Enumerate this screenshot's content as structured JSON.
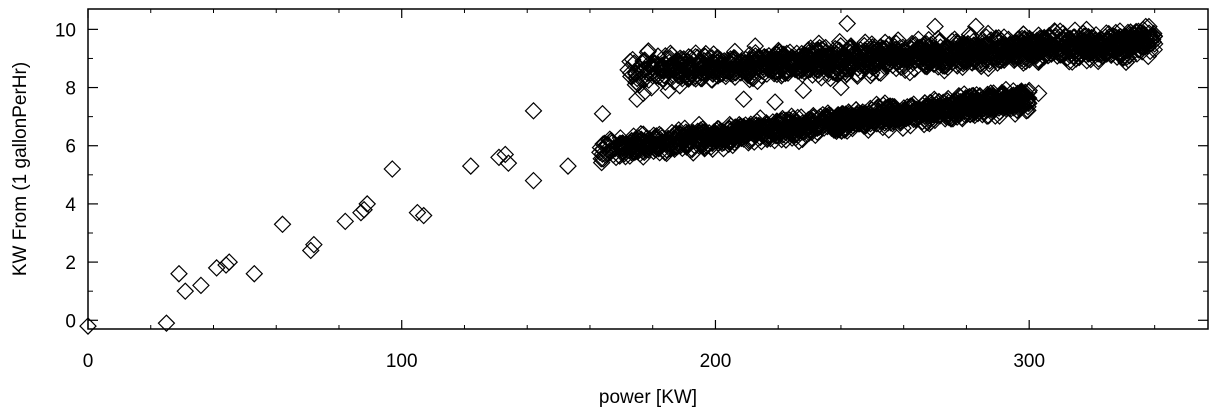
{
  "chart_data": {
    "type": "scatter",
    "title": "",
    "xlabel": "power [KW]",
    "ylabel": "KW From (1 gallonPerHr)",
    "xlim": [
      0,
      357
    ],
    "ylim": [
      -0.3,
      10.7
    ],
    "grid": false,
    "marker": "diamond-open",
    "xticks": [
      0,
      100,
      200,
      300
    ],
    "yticks": [
      0,
      2,
      4,
      6,
      8,
      10
    ],
    "series": [
      {
        "points": [
          [
            0,
            -0.2
          ],
          [
            25,
            -0.1
          ],
          [
            29,
            1.6
          ],
          [
            31,
            1.0
          ],
          [
            36,
            1.2
          ],
          [
            41,
            1.8
          ],
          [
            44,
            1.9
          ],
          [
            45,
            2.0
          ],
          [
            53,
            1.6
          ],
          [
            62,
            3.3
          ],
          [
            71,
            2.4
          ],
          [
            72,
            2.6
          ],
          [
            82,
            3.4
          ],
          [
            87,
            3.7
          ],
          [
            88,
            3.8
          ],
          [
            89,
            4.0
          ],
          [
            97,
            5.2
          ],
          [
            105,
            3.7
          ],
          [
            107,
            3.6
          ],
          [
            122,
            5.3
          ],
          [
            131,
            5.6
          ],
          [
            133,
            5.7
          ],
          [
            134,
            5.4
          ],
          [
            142,
            7.2
          ],
          [
            142,
            4.8
          ],
          [
            153,
            5.3
          ],
          [
            164,
            7.1
          ],
          [
            168,
            5.9
          ],
          [
            175,
            7.6
          ],
          [
            177,
            7.8
          ],
          [
            173,
            8.5
          ],
          [
            185,
            7.9
          ],
          [
            242,
            10.2
          ],
          [
            270,
            10.1
          ],
          [
            283,
            10.1
          ],
          [
            303,
            9.8
          ],
          [
            313,
            9.1
          ],
          [
            322,
            8.9
          ],
          [
            337,
            9.7
          ],
          [
            340,
            9.5
          ],
          [
            300,
            7.9
          ],
          [
            303,
            7.8
          ],
          [
            228,
            7.9
          ],
          [
            240,
            8.0
          ],
          [
            209,
            7.6
          ],
          [
            219,
            7.5
          ]
        ],
        "clusters": [
          {
            "x_range": [
              172,
              340
            ],
            "y_start": 8.55,
            "y_end": 9.55,
            "spread": 0.6,
            "count": 1500
          },
          {
            "x_range": [
              163,
              300
            ],
            "y_start": 5.85,
            "y_end": 7.6,
            "spread": 0.45,
            "count": 1300
          }
        ]
      }
    ]
  }
}
